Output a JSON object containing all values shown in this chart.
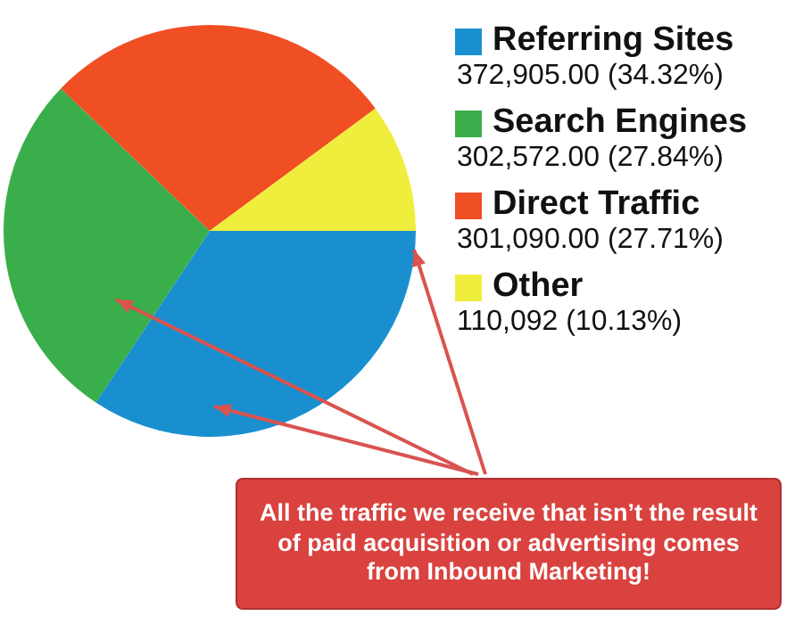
{
  "chart_data": {
    "type": "pie",
    "categories": [
      "Referring Sites",
      "Search Engines",
      "Direct Traffic",
      "Other"
    ],
    "values": [
      372905,
      302572,
      301090,
      110092
    ],
    "value_labels": [
      "372,905.00 (34.32%)",
      "302,572.00 (27.84%)",
      "301,090.00 (27.71%)",
      "110,092 (10.13%)"
    ],
    "colors": [
      "#1a8fcf",
      "#3aae4a",
      "#f04e23",
      "#f0ee3c"
    ],
    "legend": "right",
    "annotations": [
      "All the traffic we receive that isn’t the result of paid acquisition or advertising comes from Inbound Marketing!"
    ]
  }
}
